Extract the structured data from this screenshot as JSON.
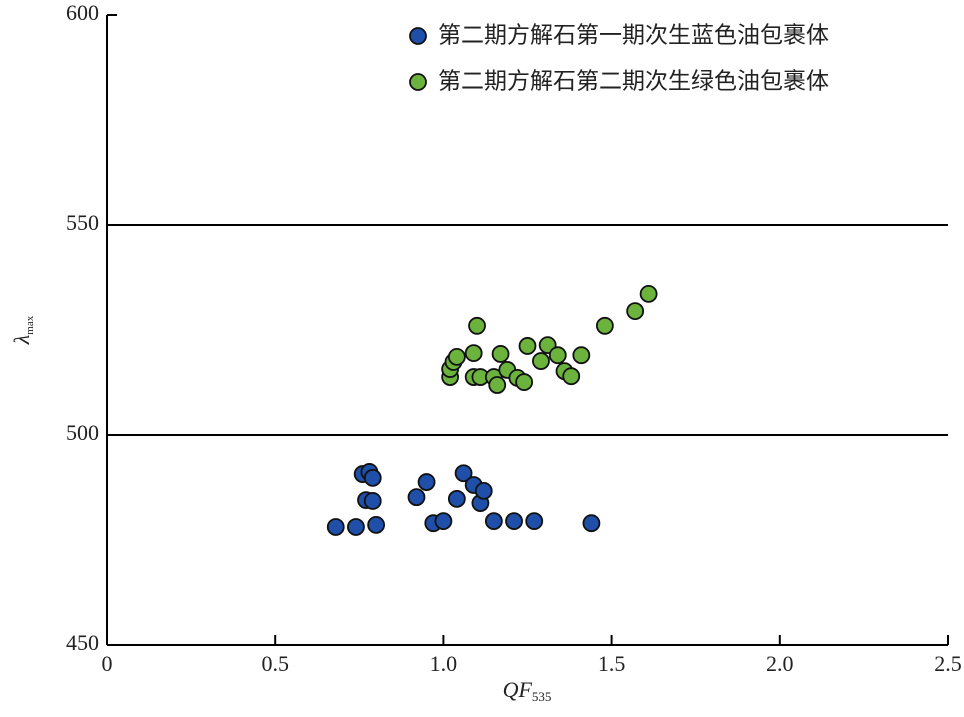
{
  "chart_data": {
    "type": "scatter",
    "xlabel": {
      "main": "QF",
      "sub": "535"
    },
    "ylabel": {
      "main": "λ",
      "sub": "max"
    },
    "xlim": [
      0,
      2.5
    ],
    "ylim": [
      450,
      600
    ],
    "xticks": [
      0,
      0.5,
      {
        "value": 1.0,
        "label": "1.0"
      },
      1.5,
      {
        "value": 2.0,
        "label": "2.0"
      },
      2.5
    ],
    "yticks": [
      450,
      500,
      550,
      600
    ],
    "reference_lines": [
      500,
      550
    ],
    "legend": "upper right",
    "series": [
      {
        "name": "第二期方解石第一期次生蓝色油包裹体",
        "color": "#1f4fa8",
        "x": [
          0.68,
          0.74,
          0.76,
          0.78,
          0.79,
          0.77,
          0.79,
          0.8,
          0.92,
          0.95,
          0.97,
          1.0,
          1.04,
          1.06,
          1.09,
          1.11,
          1.12,
          1.15,
          1.21,
          1.27,
          1.44
        ],
        "values": [
          478.1,
          478.1,
          490.7,
          491.2,
          489.8,
          484.5,
          484.3,
          478.6,
          485.2,
          488.8,
          479.0,
          479.5,
          484.8,
          490.9,
          488.1,
          483.8,
          486.7,
          479.5,
          479.5,
          479.5,
          479.0
        ]
      },
      {
        "name": "第二期方解石第二期次生绿色油包裹体",
        "color": "#6cb33e",
        "x": [
          1.1,
          1.02,
          1.02,
          1.03,
          1.04,
          1.09,
          1.09,
          1.11,
          1.15,
          1.16,
          1.17,
          1.19,
          1.22,
          1.24,
          1.25,
          1.29,
          1.31,
          1.34,
          1.36,
          1.38,
          1.41,
          1.48,
          1.57,
          1.61
        ],
        "values": [
          526.0,
          513.8,
          515.7,
          517.4,
          518.6,
          519.5,
          513.8,
          513.8,
          513.8,
          511.9,
          519.3,
          515.5,
          513.6,
          512.6,
          521.2,
          517.6,
          521.4,
          519.0,
          515.2,
          514.0,
          519.0,
          526.0,
          529.5,
          533.6
        ]
      }
    ]
  }
}
